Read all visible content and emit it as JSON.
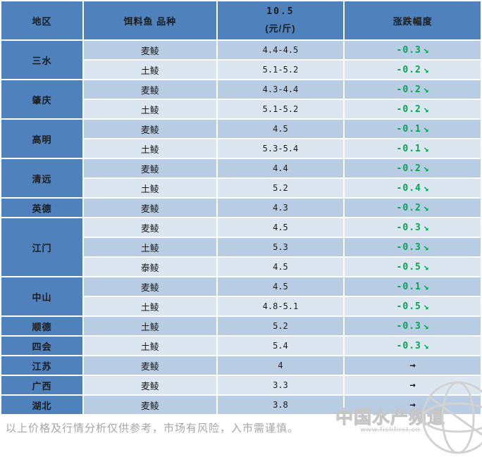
{
  "colors": {
    "header_bg": "#4f81bd",
    "row_dark": "#b8cce4",
    "row_light": "#dce6f1",
    "down_green": "#00a650",
    "flat_arrow": "#1c1c1c"
  },
  "icons": {
    "down_arrow": "↘",
    "flat_arrow": "→"
  },
  "table": {
    "headers": {
      "region": "地区",
      "variety": "饵料鱼 品种",
      "price_line1": "10.5",
      "price_line2": "(元/斤)",
      "change": "涨跌幅度"
    },
    "regions": [
      {
        "name": "三水",
        "rows": [
          {
            "variety": "麦鲮",
            "price": "4.4-4.5",
            "change": "-0.3",
            "trend": "down"
          },
          {
            "variety": "土鲮",
            "price": "5.1-5.2",
            "change": "-0.2",
            "trend": "down"
          }
        ]
      },
      {
        "name": "肇庆",
        "rows": [
          {
            "variety": "麦鲮",
            "price": "4.3-4.4",
            "change": "-0.2",
            "trend": "down"
          },
          {
            "variety": "土鲮",
            "price": "5.1-5.2",
            "change": "-0.2",
            "trend": "down"
          }
        ]
      },
      {
        "name": "高明",
        "rows": [
          {
            "variety": "麦鲮",
            "price": "4.5",
            "change": "-0.1",
            "trend": "down"
          },
          {
            "variety": "土鲮",
            "price": "5.3-5.4",
            "change": "-0.1",
            "trend": "down"
          }
        ]
      },
      {
        "name": "清远",
        "rows": [
          {
            "variety": "麦鲮",
            "price": "4.4",
            "change": "-0.2",
            "trend": "down"
          },
          {
            "variety": "土鲮",
            "price": "5.2",
            "change": "-0.4",
            "trend": "down"
          }
        ]
      },
      {
        "name": "英德",
        "rows": [
          {
            "variety": "麦鲮",
            "price": "4.3",
            "change": "-0.2",
            "trend": "down"
          }
        ]
      },
      {
        "name": "江门",
        "rows": [
          {
            "variety": "麦鲮",
            "price": "4.5",
            "change": "-0.3",
            "trend": "down"
          },
          {
            "variety": "土鲮",
            "price": "5.3",
            "change": "-0.3",
            "trend": "down"
          },
          {
            "variety": "泰鲮",
            "price": "4.5",
            "change": "-0.5",
            "trend": "down"
          }
        ]
      },
      {
        "name": "中山",
        "rows": [
          {
            "variety": "麦鲮",
            "price": "4.5",
            "change": "-0.1",
            "trend": "down"
          },
          {
            "variety": "土鲮",
            "price": "4.8-5.1",
            "change": "-0.5",
            "trend": "down"
          }
        ]
      },
      {
        "name": "顺德",
        "rows": [
          {
            "variety": "土鲮",
            "price": "5.2",
            "change": "-0.3",
            "trend": "down"
          }
        ]
      },
      {
        "name": "四会",
        "rows": [
          {
            "variety": "土鲮",
            "price": "5.4",
            "change": "-0.3",
            "trend": "down"
          }
        ]
      },
      {
        "name": "江苏",
        "rows": [
          {
            "variety": "麦鲮",
            "price": "4",
            "change": "",
            "trend": "flat"
          }
        ]
      },
      {
        "name": "广西",
        "rows": [
          {
            "variety": "麦鲮",
            "price": "3.3",
            "change": "",
            "trend": "flat"
          }
        ]
      },
      {
        "name": "湖北",
        "rows": [
          {
            "variety": "麦鲮",
            "price": "3.8",
            "change": "",
            "trend": "flat"
          }
        ]
      }
    ]
  },
  "footer": {
    "disclaimer": "以上价格及行情分析仅供参考，市场有风险，入市需谨慎。"
  },
  "watermark": {
    "title": "中国水产频道",
    "url": "www.fishfirst.cn"
  }
}
